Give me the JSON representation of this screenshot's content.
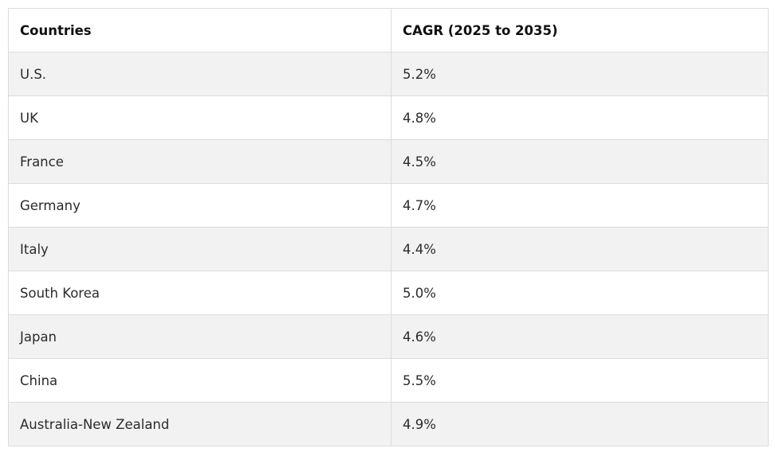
{
  "table": {
    "headers": [
      "Countries",
      "CAGR (2025 to 2035)"
    ],
    "rows": [
      {
        "country": "U.S.",
        "cagr": "5.2%"
      },
      {
        "country": "UK",
        "cagr": "4.8%"
      },
      {
        "country": "France",
        "cagr": "4.5%"
      },
      {
        "country": "Germany",
        "cagr": "4.7%"
      },
      {
        "country": "Italy",
        "cagr": "4.4%"
      },
      {
        "country": "South Korea",
        "cagr": "5.0%"
      },
      {
        "country": "Japan",
        "cagr": "4.6%"
      },
      {
        "country": "China",
        "cagr": "5.5%"
      },
      {
        "country": "Australia-New Zealand",
        "cagr": "4.9%"
      }
    ]
  },
  "colors": {
    "stripe": "#f2f2f2",
    "border": "#dcdcdc"
  }
}
